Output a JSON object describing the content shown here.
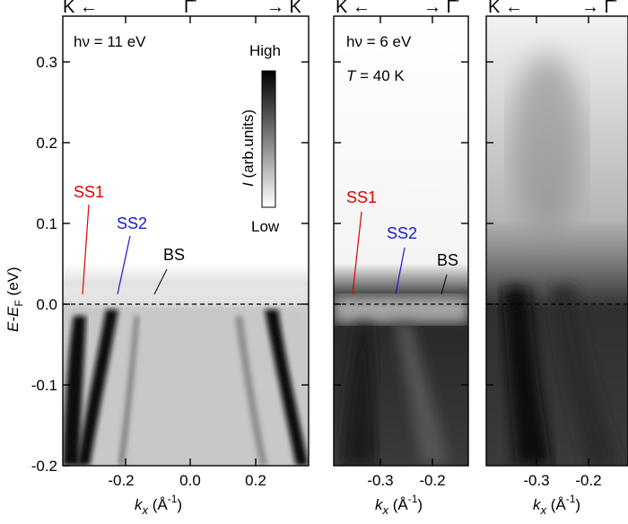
{
  "figure": {
    "panels": [
      {
        "id": "a",
        "header_left": "K̄ ←",
        "header_mid": "Γ̄",
        "header_right": "→ K̄",
        "photon_energy": "hν = 11 eV",
        "temperature": "",
        "x_ticks": [
          "-0.2",
          "0.0",
          "0.2"
        ],
        "xlabel_main": "k",
        "xlabel_sub": "x",
        "xlabel_unit": " (Å",
        "xlabel_exp": "-1",
        "xlabel_end": ")",
        "annotations": [
          {
            "text": "SS1",
            "color": "#e00000"
          },
          {
            "text": "SS2",
            "color": "#1a1acc"
          },
          {
            "text": "BS",
            "color": "#000000"
          }
        ]
      },
      {
        "id": "b",
        "header_left": "K̄ ←",
        "header_mid": "",
        "header_right": "→ Γ̄",
        "photon_energy": "hν = 6 eV",
        "temperature_label": "T",
        "temperature_value": " = 40 K",
        "x_ticks": [
          "-0.3",
          "-0.2"
        ],
        "xlabel_main": "k",
        "xlabel_sub": "x",
        "xlabel_unit": " (Å",
        "xlabel_exp": "-1",
        "xlabel_end": ")",
        "annotations": [
          {
            "text": "SS1",
            "color": "#e00000"
          },
          {
            "text": "SS2",
            "color": "#1a1acc"
          },
          {
            "text": "BS",
            "color": "#000000"
          }
        ]
      },
      {
        "id": "c",
        "header_left": "K̄ ←",
        "header_mid": "",
        "header_right": "→ Γ̄",
        "x_ticks": [
          "-0.3",
          "-0.2"
        ],
        "xlabel_main": "k",
        "xlabel_sub": "x",
        "xlabel_unit": " (Å",
        "xlabel_exp": "-1",
        "xlabel_end": ")"
      }
    ],
    "y_axis": {
      "label_main": "E-E",
      "label_sub": "F",
      "label_unit": " (eV)",
      "ticks": [
        "0.3",
        "0.2",
        "0.1",
        "0.0",
        "-0.1",
        "-0.2"
      ]
    },
    "colorbar": {
      "high": "High",
      "low": "Low",
      "label_italic": "I",
      "label_rest": " (arb.units)"
    },
    "colors": {
      "ss1": "#e00000",
      "ss2": "#1a1acc",
      "ink": "#000000"
    }
  },
  "chart_data": [
    {
      "type": "heatmap",
      "description_of_axes": "ARPES intensity map",
      "x_range": [
        -0.36,
        0.34
      ],
      "y_range": [
        -0.2,
        0.35
      ],
      "x_ticks": [
        -0.2,
        0.0,
        0.2
      ],
      "y_ticks": [
        -0.2,
        -0.1,
        0.0,
        0.1,
        0.2,
        0.3
      ],
      "fermi_level": 0.0
    },
    {
      "type": "heatmap",
      "x_range": [
        -0.37,
        -0.12
      ],
      "y_range": [
        -0.2,
        0.35
      ],
      "x_ticks": [
        -0.3,
        -0.2
      ],
      "y_ticks": [
        -0.2,
        -0.1,
        0.0,
        0.1,
        0.2,
        0.3
      ],
      "fermi_level": 0.0
    },
    {
      "type": "heatmap",
      "x_range": [
        -0.37,
        -0.12
      ],
      "y_range": [
        -0.2,
        0.35
      ],
      "x_ticks": [
        -0.3,
        -0.2
      ],
      "y_ticks": [
        -0.2,
        -0.1,
        0.0,
        0.1,
        0.2,
        0.3
      ],
      "fermi_level": 0.0
    }
  ]
}
